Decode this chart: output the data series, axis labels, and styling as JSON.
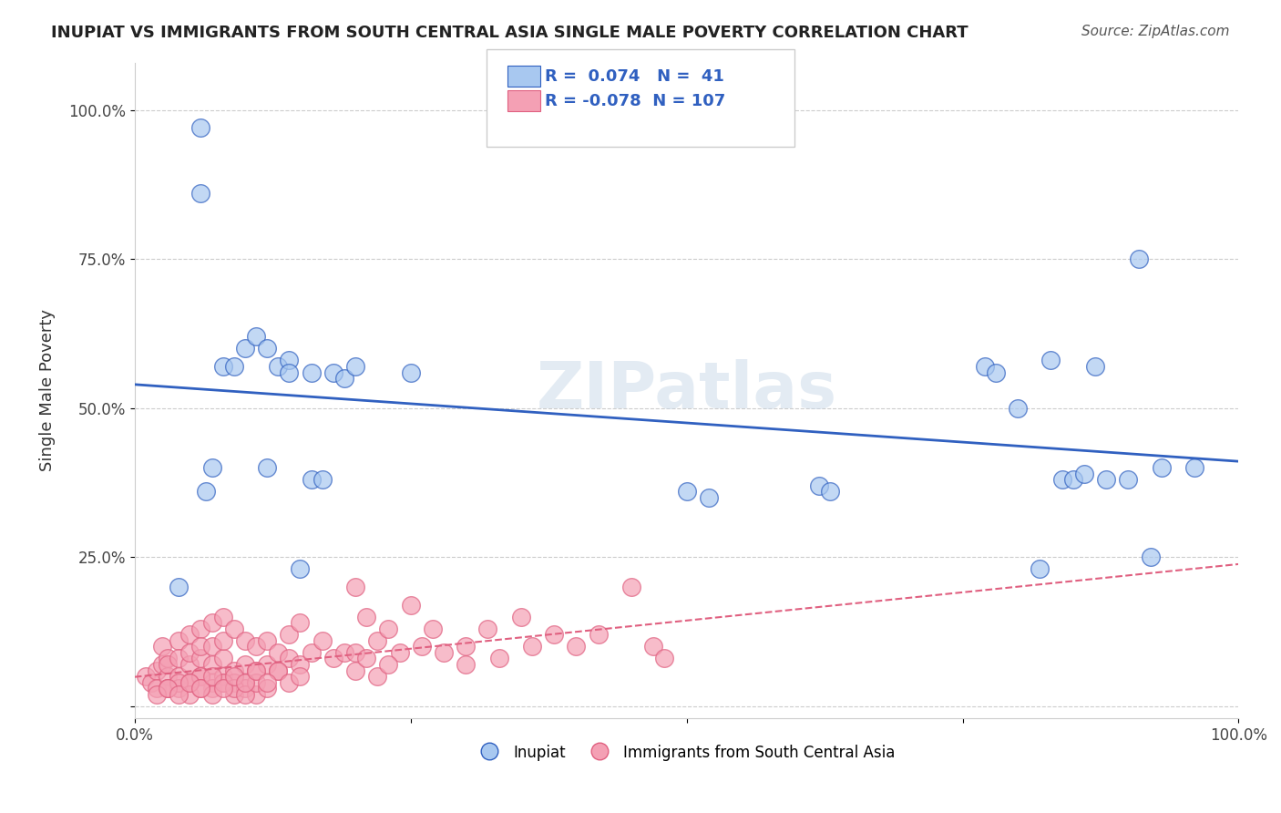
{
  "title": "INUPIAT VS IMMIGRANTS FROM SOUTH CENTRAL ASIA SINGLE MALE POVERTY CORRELATION CHART",
  "source": "Source: ZipAtlas.com",
  "xlabel": "",
  "ylabel": "Single Male Poverty",
  "xlim": [
    0.0,
    1.0
  ],
  "ylim": [
    -0.02,
    1.08
  ],
  "yticks": [
    0.0,
    0.25,
    0.5,
    0.75,
    1.0
  ],
  "ytick_labels": [
    "",
    "25.0%",
    "50.0%",
    "75.0%",
    "100.0%"
  ],
  "xticks": [
    0.0,
    0.25,
    0.5,
    0.75,
    1.0
  ],
  "xtick_labels": [
    "0.0%",
    "",
    "",
    "",
    "100.0%"
  ],
  "r_blue": 0.074,
  "n_blue": 41,
  "r_pink": -0.078,
  "n_pink": 107,
  "blue_color": "#a8c8f0",
  "pink_color": "#f4a0b4",
  "blue_line_color": "#3060c0",
  "pink_line_color": "#e06080",
  "legend_r_color": "#3060c0",
  "watermark": "ZIPatlas",
  "blue_scatter_x": [
    0.04,
    0.06,
    0.06,
    0.065,
    0.07,
    0.08,
    0.09,
    0.1,
    0.11,
    0.12,
    0.12,
    0.13,
    0.14,
    0.14,
    0.15,
    0.16,
    0.16,
    0.17,
    0.18,
    0.19,
    0.2,
    0.25,
    0.5,
    0.52,
    0.62,
    0.63,
    0.77,
    0.78,
    0.8,
    0.82,
    0.83,
    0.84,
    0.85,
    0.86,
    0.87,
    0.88,
    0.9,
    0.91,
    0.92,
    0.93,
    0.96
  ],
  "blue_scatter_y": [
    0.2,
    0.97,
    0.86,
    0.36,
    0.4,
    0.57,
    0.57,
    0.6,
    0.62,
    0.6,
    0.4,
    0.57,
    0.58,
    0.56,
    0.23,
    0.56,
    0.38,
    0.38,
    0.56,
    0.55,
    0.57,
    0.56,
    0.36,
    0.35,
    0.37,
    0.36,
    0.57,
    0.56,
    0.5,
    0.23,
    0.58,
    0.38,
    0.38,
    0.39,
    0.57,
    0.38,
    0.38,
    0.75,
    0.25,
    0.4,
    0.4
  ],
  "pink_scatter_x": [
    0.01,
    0.015,
    0.02,
    0.02,
    0.025,
    0.025,
    0.03,
    0.03,
    0.03,
    0.03,
    0.04,
    0.04,
    0.04,
    0.04,
    0.05,
    0.05,
    0.05,
    0.05,
    0.06,
    0.06,
    0.06,
    0.06,
    0.07,
    0.07,
    0.07,
    0.07,
    0.08,
    0.08,
    0.08,
    0.08,
    0.09,
    0.09,
    0.09,
    0.1,
    0.1,
    0.1,
    0.11,
    0.11,
    0.12,
    0.12,
    0.13,
    0.13,
    0.14,
    0.14,
    0.15,
    0.15,
    0.16,
    0.17,
    0.18,
    0.19,
    0.2,
    0.2,
    0.21,
    0.22,
    0.23,
    0.24,
    0.25,
    0.26,
    0.27,
    0.28,
    0.3,
    0.3,
    0.32,
    0.33,
    0.35,
    0.36,
    0.38,
    0.4,
    0.42,
    0.45,
    0.2,
    0.21,
    0.22,
    0.23,
    0.05,
    0.06,
    0.07,
    0.08,
    0.09,
    0.1,
    0.11,
    0.03,
    0.04,
    0.05,
    0.06,
    0.07,
    0.08,
    0.09,
    0.1,
    0.11,
    0.12,
    0.13,
    0.14,
    0.15,
    0.02,
    0.03,
    0.04,
    0.05,
    0.06,
    0.07,
    0.08,
    0.09,
    0.1,
    0.11,
    0.12,
    0.47,
    0.48
  ],
  "pink_scatter_y": [
    0.05,
    0.04,
    0.06,
    0.03,
    0.1,
    0.07,
    0.08,
    0.05,
    0.03,
    0.07,
    0.11,
    0.05,
    0.03,
    0.08,
    0.12,
    0.07,
    0.04,
    0.09,
    0.13,
    0.08,
    0.05,
    0.1,
    0.14,
    0.07,
    0.04,
    0.1,
    0.15,
    0.08,
    0.05,
    0.11,
    0.13,
    0.06,
    0.04,
    0.11,
    0.07,
    0.04,
    0.1,
    0.06,
    0.11,
    0.07,
    0.09,
    0.06,
    0.12,
    0.08,
    0.14,
    0.07,
    0.09,
    0.11,
    0.08,
    0.09,
    0.2,
    0.09,
    0.15,
    0.11,
    0.13,
    0.09,
    0.17,
    0.1,
    0.13,
    0.09,
    0.1,
    0.07,
    0.13,
    0.08,
    0.15,
    0.1,
    0.12,
    0.1,
    0.12,
    0.2,
    0.06,
    0.08,
    0.05,
    0.07,
    0.04,
    0.05,
    0.03,
    0.04,
    0.02,
    0.03,
    0.02,
    0.03,
    0.04,
    0.02,
    0.03,
    0.02,
    0.04,
    0.03,
    0.02,
    0.04,
    0.03,
    0.06,
    0.04,
    0.05,
    0.02,
    0.03,
    0.02,
    0.04,
    0.03,
    0.05,
    0.03,
    0.05,
    0.04,
    0.06,
    0.04,
    0.1,
    0.08
  ]
}
